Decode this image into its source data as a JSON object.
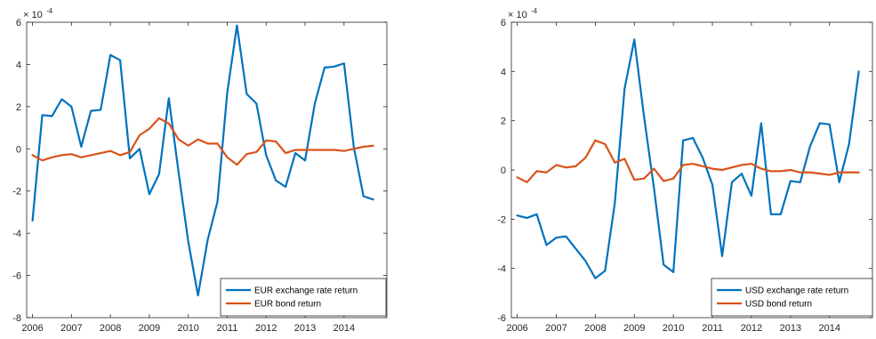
{
  "chart_data": [
    {
      "type": "line",
      "exponent_label": "× 10",
      "exponent_power": "-4",
      "xlim": [
        2005.85,
        2015.1
      ],
      "ylim": [
        -8,
        6
      ],
      "x_ticks": [
        2006,
        2007,
        2008,
        2009,
        2010,
        2011,
        2012,
        2013,
        2014
      ],
      "x_tick_labels": [
        "2006",
        "2007",
        "2008",
        "2009",
        "2010",
        "2011",
        "2012",
        "2013",
        "2014"
      ],
      "y_ticks": [
        -8,
        -6,
        -4,
        -2,
        0,
        2,
        4,
        6
      ],
      "y_tick_labels": [
        "-8",
        "-6",
        "-4",
        "-2",
        "0",
        "2",
        "4",
        "6"
      ],
      "legend_position": "bottom-right",
      "x": [
        2006.0,
        2006.25,
        2006.5,
        2006.75,
        2007.0,
        2007.25,
        2007.5,
        2007.75,
        2008.0,
        2008.25,
        2008.5,
        2008.75,
        2009.0,
        2009.25,
        2009.5,
        2009.75,
        2010.0,
        2010.25,
        2010.5,
        2010.75,
        2011.0,
        2011.25,
        2011.5,
        2011.75,
        2012.0,
        2012.25,
        2012.5,
        2012.75,
        2013.0,
        2013.25,
        2013.5,
        2013.75,
        2014.0,
        2014.25,
        2014.5,
        2014.75
      ],
      "series": [
        {
          "name": "EUR exchange rate return",
          "color": "#0072BD",
          "values": [
            -3.4,
            1.6,
            1.55,
            2.35,
            2.0,
            0.1,
            1.8,
            1.85,
            4.45,
            4.2,
            -0.45,
            0.0,
            -2.15,
            -1.2,
            2.4,
            -1.1,
            -4.4,
            -6.95,
            -4.3,
            -2.5,
            2.65,
            5.85,
            2.6,
            2.15,
            -0.3,
            -1.5,
            -1.8,
            -0.2,
            -0.55,
            2.15,
            3.85,
            3.9,
            4.05,
            0.1,
            -2.25,
            -2.4
          ]
        },
        {
          "name": "EUR bond return",
          "color": "#D95319",
          "values": [
            -0.3,
            -0.55,
            -0.4,
            -0.3,
            -0.25,
            -0.4,
            -0.3,
            -0.2,
            -0.1,
            -0.3,
            -0.15,
            0.65,
            0.95,
            1.45,
            1.2,
            0.45,
            0.15,
            0.45,
            0.25,
            0.25,
            -0.4,
            -0.75,
            -0.25,
            -0.15,
            0.4,
            0.35,
            -0.2,
            -0.05,
            -0.05,
            -0.05,
            -0.05,
            -0.05,
            -0.1,
            0.0,
            0.1,
            0.15
          ]
        }
      ]
    },
    {
      "type": "line",
      "exponent_label": "× 10",
      "exponent_power": "-4",
      "xlim": [
        2005.85,
        2015.1
      ],
      "ylim": [
        -6,
        6
      ],
      "x_ticks": [
        2006,
        2007,
        2008,
        2009,
        2010,
        2011,
        2012,
        2013,
        2014
      ],
      "x_tick_labels": [
        "2006",
        "2007",
        "2008",
        "2009",
        "2010",
        "2011",
        "2012",
        "2013",
        "2014"
      ],
      "y_ticks": [
        -6,
        -4,
        -2,
        0,
        2,
        4,
        6
      ],
      "y_tick_labels": [
        "-6",
        "-4",
        "-2",
        "0",
        "2",
        "4",
        "6"
      ],
      "legend_position": "bottom-right",
      "x": [
        2006.0,
        2006.25,
        2006.5,
        2006.75,
        2007.0,
        2007.25,
        2007.5,
        2007.75,
        2008.0,
        2008.25,
        2008.5,
        2008.75,
        2009.0,
        2009.25,
        2009.5,
        2009.75,
        2010.0,
        2010.25,
        2010.5,
        2010.75,
        2011.0,
        2011.25,
        2011.5,
        2011.75,
        2012.0,
        2012.25,
        2012.5,
        2012.75,
        2013.0,
        2013.25,
        2013.5,
        2013.75,
        2014.0,
        2014.25,
        2014.5,
        2014.75
      ],
      "series": [
        {
          "name": "USD exchange rate return",
          "color": "#0072BD",
          "values": [
            -1.85,
            -1.95,
            -1.8,
            -3.05,
            -2.75,
            -2.7,
            -3.2,
            -3.7,
            -4.4,
            -4.1,
            -1.35,
            3.3,
            5.3,
            2.15,
            -0.7,
            -3.85,
            -4.15,
            1.2,
            1.3,
            0.5,
            -0.6,
            -3.5,
            -0.5,
            -0.15,
            -1.05,
            1.9,
            -1.8,
            -1.8,
            -0.45,
            -0.5,
            0.95,
            1.9,
            1.85,
            -0.5,
            1.05,
            4.0
          ]
        },
        {
          "name": "USD bond return",
          "color": "#D95319",
          "values": [
            -0.3,
            -0.5,
            -0.05,
            -0.1,
            0.2,
            0.1,
            0.15,
            0.5,
            1.2,
            1.05,
            0.3,
            0.45,
            -0.4,
            -0.35,
            0.05,
            -0.45,
            -0.35,
            0.2,
            0.25,
            0.15,
            0.05,
            0.0,
            0.1,
            0.2,
            0.25,
            0.05,
            -0.05,
            -0.05,
            0.0,
            -0.1,
            -0.1,
            -0.15,
            -0.2,
            -0.1,
            -0.1,
            -0.1
          ]
        }
      ]
    }
  ]
}
